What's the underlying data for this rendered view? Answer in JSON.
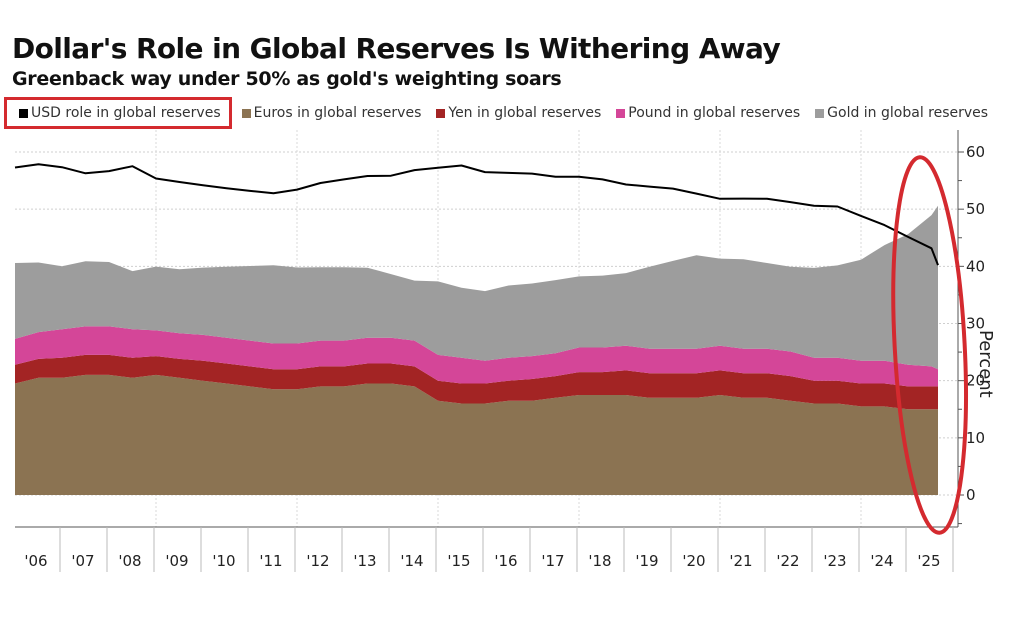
{
  "chart_data": {
    "type": "area",
    "stacked": true,
    "title": "Dollar's Role in Global Reserves Is Withering Away",
    "subtitle": "Greenback way under 50% as gold's weighting soars",
    "xlabel": "",
    "ylabel": "Percent",
    "ylim": [
      -5,
      62
    ],
    "yticks": [
      0,
      10,
      20,
      30,
      40,
      50,
      60
    ],
    "xlim": [
      2006,
      2025.95
    ],
    "xticks": [
      "'06",
      "'07",
      "'08",
      "'09",
      "'10",
      "'11",
      "'12",
      "'13",
      "'14",
      "'15",
      "'16",
      "'17",
      "'18",
      "'19",
      "'20",
      "'21",
      "'22",
      "'23",
      "'24",
      "'25"
    ],
    "grid": true,
    "legend_position": "top",
    "x": [
      2006.0,
      2006.5,
      2007.0,
      2007.5,
      2008.0,
      2008.5,
      2009.0,
      2009.5,
      2010.0,
      2010.5,
      2011.0,
      2011.5,
      2012.0,
      2012.5,
      2013.0,
      2013.5,
      2014.0,
      2014.5,
      2015.0,
      2015.5,
      2016.0,
      2016.5,
      2017.0,
      2017.5,
      2018.0,
      2018.5,
      2019.0,
      2019.5,
      2020.0,
      2020.5,
      2021.0,
      2021.5,
      2022.0,
      2022.5,
      2023.0,
      2023.5,
      2024.0,
      2024.5,
      2025.0,
      2025.5,
      2025.95
    ],
    "series": [
      {
        "name": "USD role in global reserves",
        "kind": "line",
        "color": "#000000",
        "values": [
          57.0,
          57.5,
          57.0,
          56.0,
          56.5,
          57.5,
          55.5,
          55.0,
          54.5,
          54.0,
          53.5,
          53.0,
          53.5,
          54.5,
          55.0,
          55.5,
          55.5,
          56.5,
          57.0,
          57.5,
          56.5,
          56.5,
          56.5,
          56.0,
          56.0,
          55.5,
          54.5,
          54.0,
          53.5,
          52.5,
          51.5,
          51.5,
          51.5,
          51.0,
          50.5,
          50.5,
          49.0,
          47.5,
          45.5,
          43.5,
          40.5
        ]
      },
      {
        "name": "Euros in global reserves",
        "kind": "area",
        "color": "#8b7352",
        "values": [
          19.5,
          20.5,
          20.5,
          21.0,
          21.0,
          20.5,
          21.0,
          20.5,
          20.0,
          19.5,
          19.0,
          18.5,
          18.5,
          19.0,
          19.0,
          19.5,
          19.5,
          19.0,
          16.5,
          16.0,
          16.0,
          16.5,
          16.5,
          17.0,
          17.5,
          17.5,
          17.5,
          17.0,
          17.0,
          17.0,
          17.5,
          17.0,
          17.0,
          16.5,
          16.0,
          16.0,
          15.5,
          15.5,
          15.0,
          15.0,
          15.0
        ]
      },
      {
        "name": "Yen in global reserves",
        "kind": "area",
        "color": "#a32424",
        "values": [
          3.3,
          3.3,
          3.5,
          3.5,
          3.5,
          3.5,
          3.3,
          3.3,
          3.5,
          3.5,
          3.5,
          3.5,
          3.5,
          3.5,
          3.5,
          3.5,
          3.5,
          3.5,
          3.5,
          3.5,
          3.5,
          3.5,
          3.8,
          3.8,
          4.0,
          4.0,
          4.3,
          4.3,
          4.3,
          4.3,
          4.3,
          4.3,
          4.3,
          4.3,
          4.0,
          4.0,
          4.0,
          4.0,
          4.0,
          4.0,
          4.0
        ]
      },
      {
        "name": "Pound in global reserves",
        "kind": "area",
        "color": "#d44698",
        "values": [
          4.5,
          4.7,
          5.0,
          5.0,
          5.0,
          5.0,
          4.5,
          4.5,
          4.5,
          4.5,
          4.5,
          4.5,
          4.5,
          4.5,
          4.5,
          4.5,
          4.5,
          4.5,
          4.5,
          4.5,
          4.0,
          4.0,
          4.0,
          4.0,
          4.3,
          4.3,
          4.3,
          4.3,
          4.3,
          4.3,
          4.3,
          4.3,
          4.3,
          4.3,
          4.0,
          4.0,
          4.0,
          4.0,
          3.8,
          3.5,
          3.0
        ]
      },
      {
        "name": "Gold in global reserves",
        "kind": "area",
        "color": "#9d9d9d",
        "values": [
          13.0,
          12.0,
          11.0,
          11.5,
          11.5,
          10.5,
          11.5,
          11.5,
          12.0,
          12.5,
          13.0,
          13.5,
          13.0,
          12.5,
          12.5,
          12.0,
          11.0,
          10.5,
          13.0,
          12.5,
          12.5,
          13.0,
          13.0,
          13.0,
          12.5,
          12.5,
          12.5,
          14.0,
          15.0,
          16.0,
          15.0,
          15.5,
          15.0,
          15.0,
          16.0,
          16.5,
          18.0,
          20.5,
          23.0,
          26.5,
          28.5
        ]
      }
    ]
  },
  "header": {
    "title": "Dollar's Role in Global Reserves Is Withering Away",
    "subtitle": "Greenback way under 50% as gold's weighting soars"
  },
  "legend": [
    {
      "label": "USD role in global reserves",
      "color": "#000000",
      "highlighted": true
    },
    {
      "label": "Euros in global reserves",
      "color": "#8b7352"
    },
    {
      "label": "Yen in global reserves",
      "color": "#a32424"
    },
    {
      "label": "Pound in global reserves",
      "color": "#d44698"
    },
    {
      "label": "Gold in global reserves",
      "color": "#9d9d9d"
    }
  ],
  "annotations": {
    "highlight_ellipse_color": "#d42a2f",
    "highlight_region_years": [
      2024.8,
      2025.95
    ]
  },
  "axis": {
    "ylabel": "Percent"
  }
}
